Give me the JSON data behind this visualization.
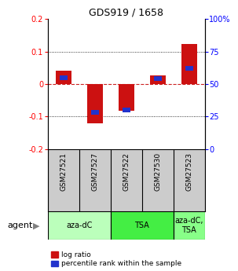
{
  "title": "GDS919 / 1658",
  "samples": [
    "GSM27521",
    "GSM27527",
    "GSM27522",
    "GSM27530",
    "GSM27523"
  ],
  "log_ratio": [
    0.042,
    -0.122,
    -0.082,
    0.026,
    0.122
  ],
  "percentile_rank": [
    55,
    28,
    30,
    54,
    62
  ],
  "agents": [
    {
      "label": "aza-dC",
      "cols": [
        0,
        1
      ],
      "color": "#bbffbb"
    },
    {
      "label": "TSA",
      "cols": [
        2,
        3
      ],
      "color": "#44ee44"
    },
    {
      "label": "aza-dC,\nTSA",
      "cols": [
        4,
        4
      ],
      "color": "#88ff88"
    }
  ],
  "ylim": [
    -0.2,
    0.2
  ],
  "yticks_left": [
    -0.2,
    -0.1,
    0.0,
    0.1,
    0.2
  ],
  "yticks_right": [
    0,
    25,
    50,
    75,
    100
  ],
  "bar_color_red": "#cc1111",
  "bar_color_blue": "#2233cc",
  "bar_width": 0.5,
  "blue_bar_width": 0.25,
  "blue_bar_height": 0.015,
  "grid_color": "#000000",
  "zero_line_color": "#cc2222",
  "legend_red": "log ratio",
  "legend_blue": "percentile rank within the sample",
  "background_color": "#ffffff",
  "label_row_color": "#cccccc"
}
